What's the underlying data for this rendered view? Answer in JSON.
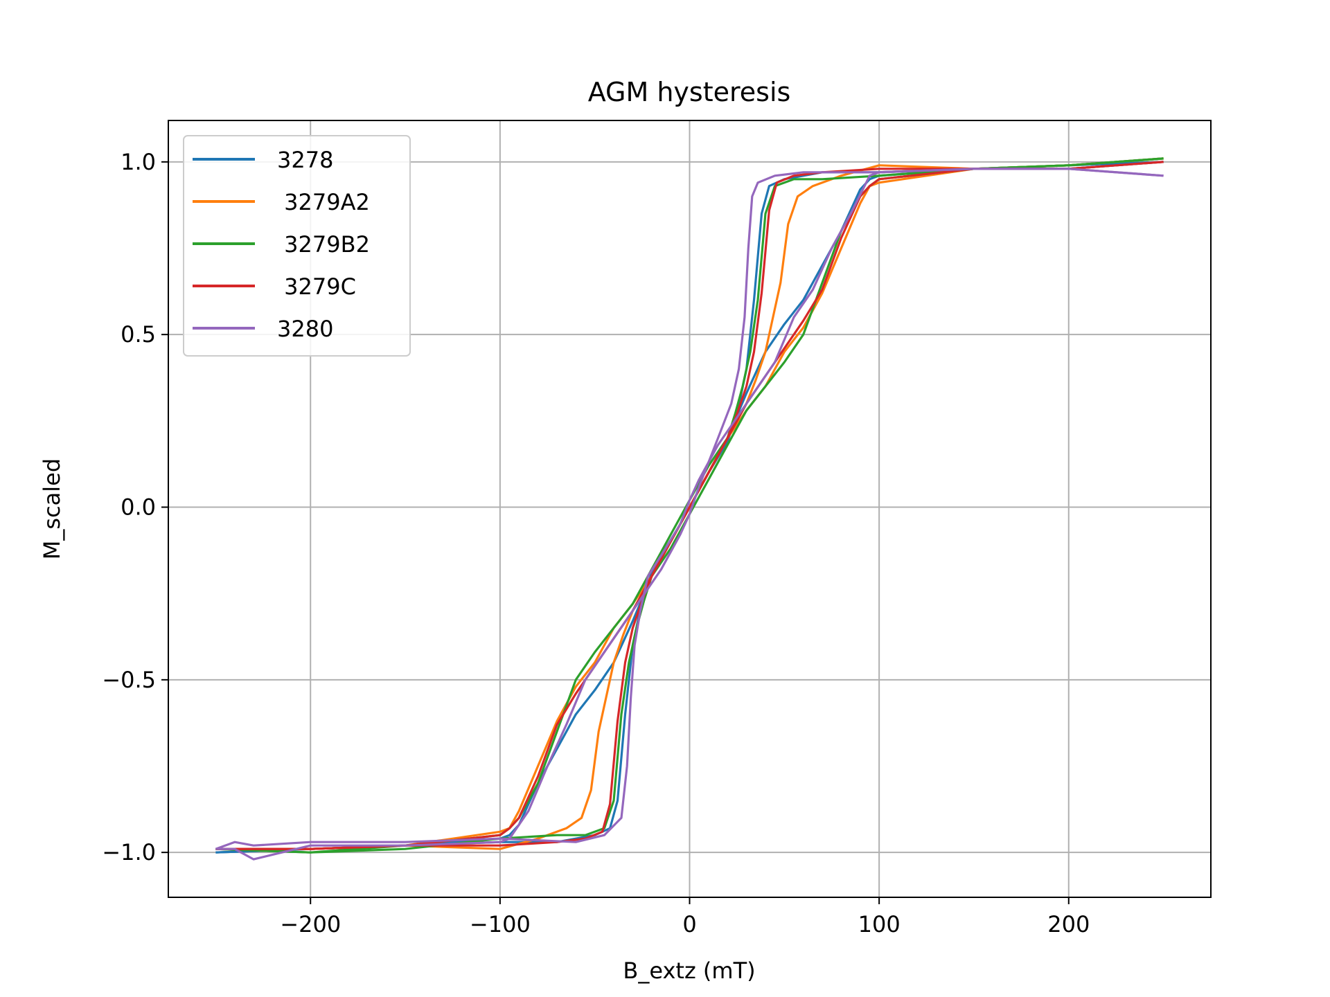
{
  "chart_data": {
    "type": "line",
    "title": "AGM hysteresis",
    "xlabel": "B_extz (mT)",
    "ylabel": "M_scaled",
    "xlim": [
      -275,
      275
    ],
    "ylim": [
      -1.13,
      1.12
    ],
    "xticks": [
      -200,
      -100,
      0,
      100,
      200
    ],
    "xtick_labels": [
      "−200",
      "−100",
      "0",
      "100",
      "200"
    ],
    "yticks": [
      -1.0,
      -0.5,
      0.0,
      0.5,
      1.0
    ],
    "ytick_labels": [
      "−1.0",
      "−0.5",
      "0.0",
      "0.5",
      "1.0"
    ],
    "grid": true,
    "legend_position": "top-left",
    "series": [
      {
        "name": "3278",
        "color": "#1f77b4",
        "branches": [
          {
            "x": [
              -250,
              -200,
              -150,
              -100,
              -70,
              -60,
              -50,
              -42,
              -38,
              -34,
              -30,
              -25,
              -20,
              -10,
              0,
              10,
              20,
              30,
              40,
              50,
              60,
              70,
              80,
              90,
              95,
              100,
              150,
              200,
              250
            ],
            "y": [
              -1.0,
              -0.99,
              -0.98,
              -0.97,
              -0.97,
              -0.96,
              -0.95,
              -0.93,
              -0.85,
              -0.6,
              -0.4,
              -0.27,
              -0.19,
              -0.1,
              0.0,
              0.1,
              0.2,
              0.33,
              0.45,
              0.53,
              0.6,
              0.7,
              0.8,
              0.92,
              0.95,
              0.96,
              0.98,
              0.98,
              1.0
            ]
          },
          {
            "x": [
              250,
              200,
              150,
              100,
              70,
              60,
              50,
              42,
              38,
              34,
              30,
              25,
              20,
              10,
              0,
              -10,
              -20,
              -30,
              -40,
              -50,
              -60,
              -70,
              -80,
              -90,
              -95,
              -100,
              -150,
              -200,
              -250
            ],
            "y": [
              1.0,
              0.99,
              0.98,
              0.97,
              0.97,
              0.96,
              0.95,
              0.93,
              0.85,
              0.6,
              0.4,
              0.27,
              0.19,
              0.1,
              0.0,
              -0.1,
              -0.2,
              -0.33,
              -0.45,
              -0.53,
              -0.6,
              -0.7,
              -0.8,
              -0.92,
              -0.95,
              -0.96,
              -0.98,
              -0.99,
              -1.0
            ]
          }
        ]
      },
      {
        "name": " 3279A2",
        "color": "#ff7f0e",
        "branches": [
          {
            "x": [
              -250,
              -200,
              -150,
              -100,
              -80,
              -65,
              -57,
              -52,
              -48,
              -44,
              -40,
              -35,
              -30,
              -20,
              -10,
              0,
              10,
              20,
              30,
              40,
              50,
              60,
              70,
              80,
              90,
              95,
              100,
              150,
              200,
              250
            ],
            "y": [
              -0.99,
              -0.99,
              -0.98,
              -0.99,
              -0.96,
              -0.93,
              -0.9,
              -0.82,
              -0.65,
              -0.55,
              -0.45,
              -0.37,
              -0.3,
              -0.2,
              -0.1,
              0.0,
              0.1,
              0.2,
              0.28,
              0.35,
              0.45,
              0.52,
              0.62,
              0.75,
              0.88,
              0.93,
              0.94,
              0.98,
              0.99,
              1.01
            ]
          },
          {
            "x": [
              250,
              200,
              150,
              100,
              80,
              65,
              57,
              52,
              48,
              44,
              40,
              35,
              30,
              20,
              10,
              0,
              -10,
              -20,
              -30,
              -40,
              -50,
              -60,
              -70,
              -80,
              -90,
              -95,
              -100,
              -150,
              -200,
              -250
            ],
            "y": [
              1.01,
              0.99,
              0.98,
              0.99,
              0.96,
              0.93,
              0.9,
              0.82,
              0.65,
              0.55,
              0.45,
              0.37,
              0.3,
              0.2,
              0.1,
              0.0,
              -0.1,
              -0.2,
              -0.28,
              -0.35,
              -0.45,
              -0.52,
              -0.62,
              -0.75,
              -0.88,
              -0.93,
              -0.94,
              -0.98,
              -0.99,
              -0.99
            ]
          }
        ]
      },
      {
        "name": " 3279B2",
        "color": "#2ca02c",
        "branches": [
          {
            "x": [
              -250,
              -200,
              -150,
              -100,
              -70,
              -55,
              -45,
              -40,
              -36,
              -32,
              -28,
              -24,
              -20,
              -10,
              0,
              10,
              20,
              30,
              40,
              50,
              60,
              70,
              80,
              90,
              95,
              100,
              150,
              200,
              250
            ],
            "y": [
              -0.99,
              -1.0,
              -0.99,
              -0.96,
              -0.95,
              -0.95,
              -0.93,
              -0.85,
              -0.6,
              -0.45,
              -0.35,
              -0.27,
              -0.2,
              -0.12,
              -0.02,
              0.08,
              0.18,
              0.28,
              0.35,
              0.42,
              0.5,
              0.65,
              0.8,
              0.9,
              0.93,
              0.95,
              0.98,
              0.99,
              1.01
            ]
          },
          {
            "x": [
              250,
              200,
              150,
              100,
              70,
              55,
              45,
              40,
              36,
              32,
              28,
              24,
              20,
              10,
              0,
              -10,
              -20,
              -30,
              -40,
              -50,
              -60,
              -70,
              -80,
              -90,
              -95,
              -100,
              -150,
              -200,
              -250
            ],
            "y": [
              1.01,
              0.99,
              0.98,
              0.96,
              0.95,
              0.95,
              0.93,
              0.85,
              0.6,
              0.45,
              0.35,
              0.27,
              0.2,
              0.12,
              0.02,
              -0.08,
              -0.18,
              -0.28,
              -0.35,
              -0.42,
              -0.5,
              -0.65,
              -0.8,
              -0.9,
              -0.93,
              -0.95,
              -0.98,
              -1.0,
              -0.99
            ]
          }
        ]
      },
      {
        "name": " 3279C",
        "color": "#d62728",
        "branches": [
          {
            "x": [
              -250,
              -200,
              -150,
              -100,
              -70,
              -55,
              -46,
              -42,
              -38,
              -34,
              -30,
              -25,
              -20,
              -10,
              0,
              10,
              20,
              30,
              40,
              50,
              60,
              70,
              80,
              90,
              95,
              100,
              150,
              200,
              250
            ],
            "y": [
              -0.99,
              -0.99,
              -0.98,
              -0.98,
              -0.97,
              -0.96,
              -0.94,
              -0.86,
              -0.62,
              -0.45,
              -0.35,
              -0.27,
              -0.2,
              -0.1,
              0.0,
              0.1,
              0.2,
              0.3,
              0.38,
              0.46,
              0.54,
              0.63,
              0.78,
              0.9,
              0.93,
              0.95,
              0.98,
              0.98,
              1.0
            ]
          },
          {
            "x": [
              250,
              200,
              150,
              100,
              70,
              55,
              46,
              42,
              38,
              34,
              30,
              25,
              20,
              10,
              0,
              -10,
              -20,
              -30,
              -40,
              -50,
              -60,
              -70,
              -80,
              -90,
              -95,
              -100,
              -150,
              -200,
              -250
            ],
            "y": [
              1.0,
              0.98,
              0.98,
              0.98,
              0.97,
              0.96,
              0.94,
              0.86,
              0.62,
              0.45,
              0.35,
              0.27,
              0.2,
              0.1,
              0.0,
              -0.1,
              -0.2,
              -0.3,
              -0.38,
              -0.46,
              -0.54,
              -0.63,
              -0.78,
              -0.9,
              -0.93,
              -0.95,
              -0.98,
              -0.99,
              -0.99
            ]
          }
        ]
      },
      {
        "name": "3280",
        "color": "#9467bd",
        "branches": [
          {
            "x": [
              -250,
              -240,
              -230,
              -200,
              -150,
              -100,
              -60,
              -45,
              -36,
              -33,
              -31,
              -29,
              -26,
              -22,
              -15,
              -5,
              0,
              5,
              15,
              25,
              35,
              45,
              55,
              65,
              75,
              85,
              95,
              100,
              150,
              200,
              250
            ],
            "y": [
              -0.99,
              -0.97,
              -0.98,
              -0.97,
              -0.97,
              -0.96,
              -0.97,
              -0.95,
              -0.9,
              -0.75,
              -0.55,
              -0.4,
              -0.3,
              -0.2,
              -0.14,
              -0.05,
              0.02,
              0.08,
              0.18,
              0.26,
              0.34,
              0.42,
              0.55,
              0.63,
              0.75,
              0.85,
              0.96,
              0.97,
              0.98,
              0.98,
              0.96
            ]
          },
          {
            "x": [
              250,
              200,
              150,
              100,
              60,
              45,
              36,
              33,
              31,
              29,
              26,
              22,
              15,
              5,
              0,
              -5,
              -15,
              -25,
              -35,
              -45,
              -55,
              -65,
              -75,
              -85,
              -95,
              -100,
              -150,
              -200,
              -230,
              -240,
              -250
            ],
            "y": [
              0.96,
              0.98,
              0.98,
              0.97,
              0.97,
              0.96,
              0.94,
              0.9,
              0.75,
              0.55,
              0.4,
              0.3,
              0.2,
              0.06,
              -0.02,
              -0.08,
              -0.18,
              -0.26,
              -0.34,
              -0.42,
              -0.5,
              -0.63,
              -0.75,
              -0.88,
              -0.96,
              -0.97,
              -0.98,
              -0.98,
              -1.02,
              -0.99,
              -0.99
            ]
          }
        ]
      }
    ]
  }
}
